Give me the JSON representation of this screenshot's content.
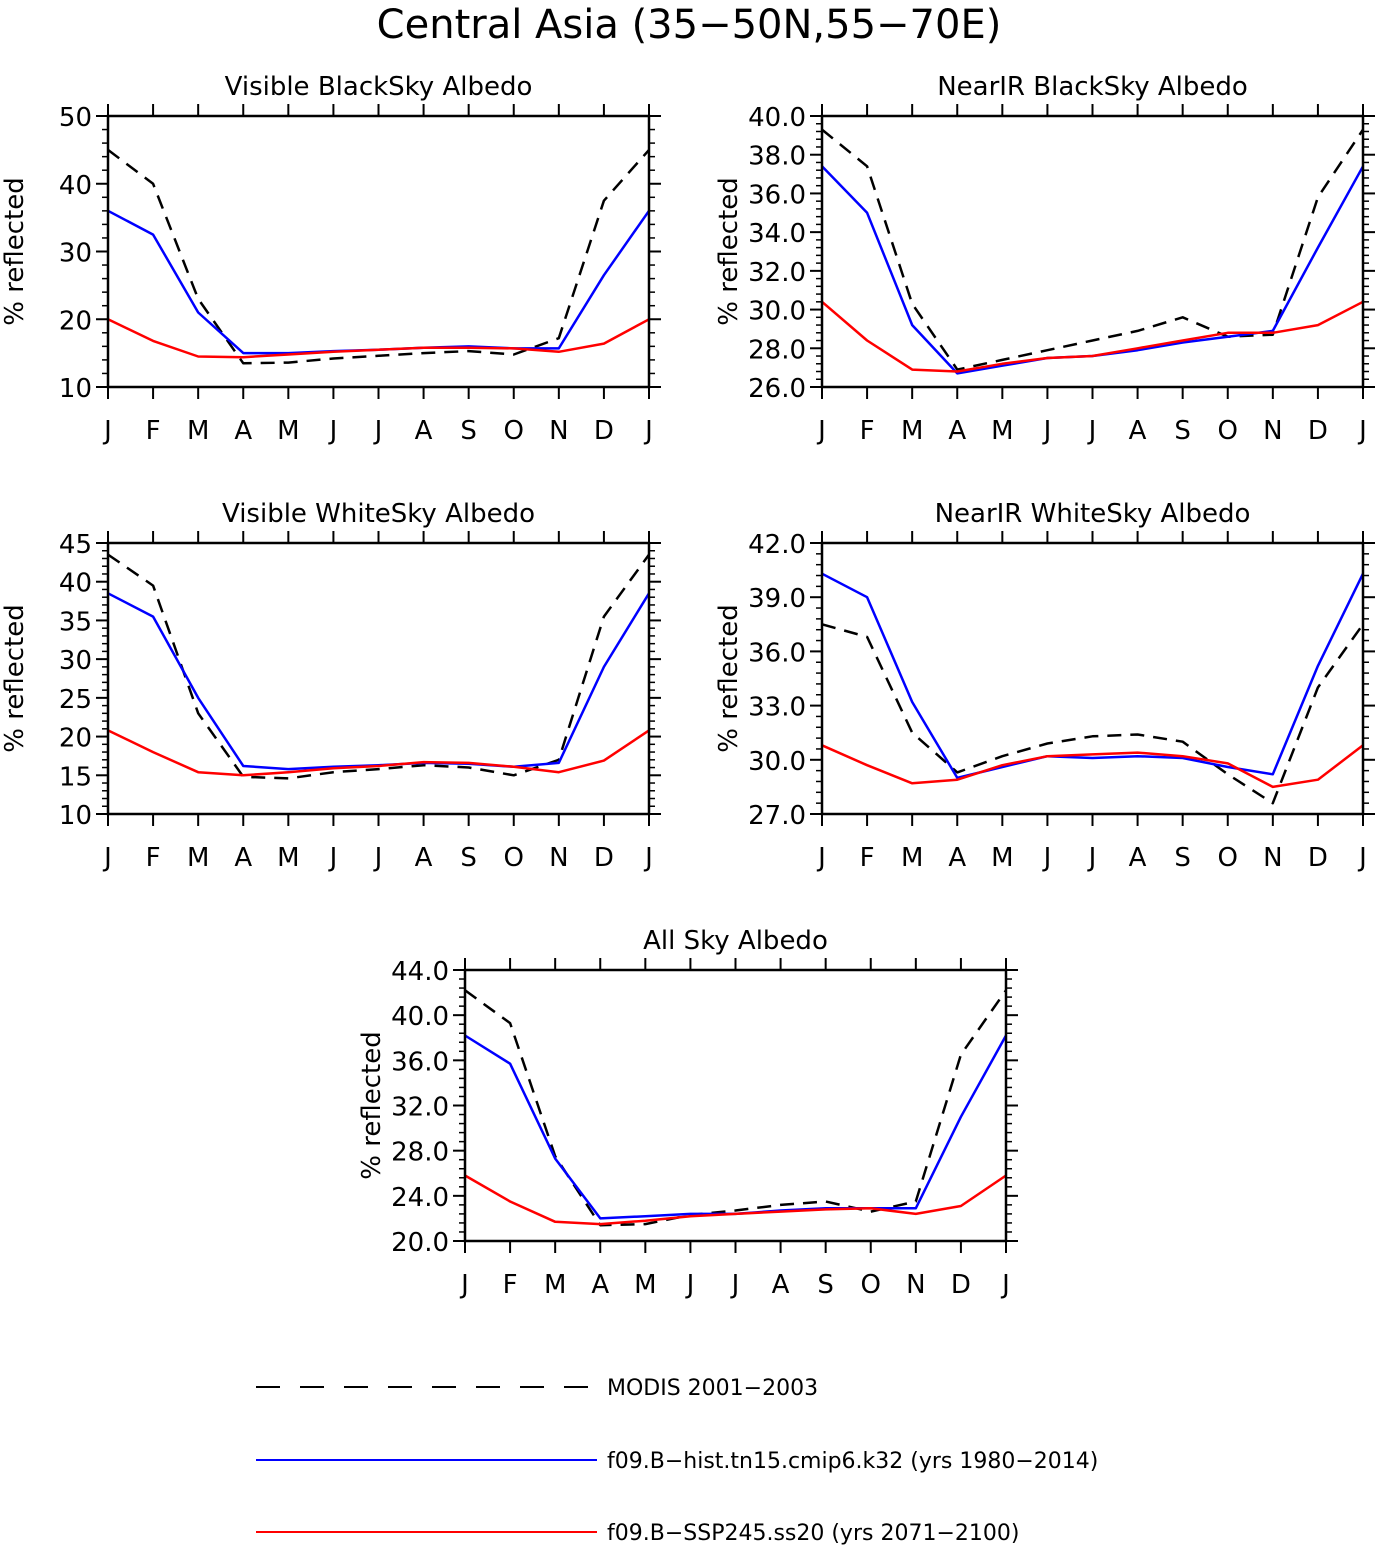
{
  "title": "Central Asia (35−50N,55−70E)",
  "colors": {
    "modis": "#000000",
    "hist": "#0000ff",
    "ssp": "#ff0000"
  },
  "legend": [
    {
      "key": "modis",
      "label": "MODIS 2001−2003",
      "style": "dashed"
    },
    {
      "key": "hist",
      "label": "f09.B−hist.tn15.cmip6.k32 (yrs 1980−2014)",
      "style": "solid"
    },
    {
      "key": "ssp",
      "label": "f09.B−SSP245.ss20 (yrs 2071−2100)",
      "style": "solid"
    }
  ],
  "chart_data": [
    {
      "type": "line",
      "title": "Visible BlackSky Albedo",
      "ylabel": "% reflected",
      "categories": [
        "J",
        "F",
        "M",
        "A",
        "M",
        "J",
        "J",
        "A",
        "S",
        "O",
        "N",
        "D",
        "J"
      ],
      "ylim": [
        10,
        50
      ],
      "yticks": [
        10,
        20,
        30,
        40,
        50
      ],
      "ytick_labels": [
        "10",
        "20",
        "30",
        "40",
        "50"
      ],
      "series": [
        {
          "key": "modis",
          "values": [
            45.0,
            40.0,
            23.0,
            13.5,
            13.6,
            14.2,
            14.6,
            15.0,
            15.3,
            14.8,
            17.2,
            37.5,
            45.0
          ]
        },
        {
          "key": "hist",
          "values": [
            36.0,
            32.5,
            21.0,
            15.0,
            15.0,
            15.3,
            15.5,
            15.8,
            16.0,
            15.7,
            15.7,
            26.5,
            36.0
          ]
        },
        {
          "key": "ssp",
          "values": [
            20.0,
            16.8,
            14.5,
            14.4,
            14.8,
            15.2,
            15.5,
            15.8,
            15.8,
            15.7,
            15.2,
            16.4,
            20.0
          ]
        }
      ]
    },
    {
      "type": "line",
      "title": "NearIR BlackSky Albedo",
      "ylabel": "% reflected",
      "categories": [
        "J",
        "F",
        "M",
        "A",
        "M",
        "J",
        "J",
        "A",
        "S",
        "O",
        "N",
        "D",
        "J"
      ],
      "ylim": [
        26,
        40
      ],
      "yticks": [
        26,
        28,
        30,
        32,
        34,
        36,
        38,
        40
      ],
      "ytick_labels": [
        "26.0",
        "28.0",
        "30.0",
        "32.0",
        "34.0",
        "36.0",
        "38.0",
        "40.0"
      ],
      "series": [
        {
          "key": "modis",
          "values": [
            39.3,
            37.4,
            30.3,
            26.9,
            27.4,
            27.9,
            28.4,
            28.9,
            29.6,
            28.6,
            28.7,
            35.8,
            39.3
          ]
        },
        {
          "key": "hist",
          "values": [
            37.4,
            35.0,
            29.2,
            26.7,
            27.1,
            27.5,
            27.6,
            27.9,
            28.3,
            28.6,
            28.9,
            33.2,
            37.4
          ]
        },
        {
          "key": "ssp",
          "values": [
            30.4,
            28.4,
            26.9,
            26.8,
            27.2,
            27.5,
            27.6,
            28.0,
            28.4,
            28.8,
            28.8,
            29.2,
            30.4
          ]
        }
      ]
    },
    {
      "type": "line",
      "title": "Visible WhiteSky Albedo",
      "ylabel": "% reflected",
      "categories": [
        "J",
        "F",
        "M",
        "A",
        "M",
        "J",
        "J",
        "A",
        "S",
        "O",
        "N",
        "D",
        "J"
      ],
      "ylim": [
        10,
        45
      ],
      "yticks": [
        10,
        15,
        20,
        25,
        30,
        35,
        40,
        45
      ],
      "ytick_labels": [
        "10",
        "15",
        "20",
        "25",
        "30",
        "35",
        "40",
        "45"
      ],
      "series": [
        {
          "key": "modis",
          "values": [
            43.5,
            39.5,
            23.0,
            14.8,
            14.6,
            15.4,
            15.8,
            16.3,
            16.0,
            15.0,
            17.0,
            35.5,
            43.5
          ]
        },
        {
          "key": "hist",
          "values": [
            38.5,
            35.5,
            25.0,
            16.2,
            15.8,
            16.1,
            16.3,
            16.6,
            16.5,
            16.1,
            16.6,
            29.0,
            38.5
          ]
        },
        {
          "key": "ssp",
          "values": [
            20.8,
            18.0,
            15.4,
            15.0,
            15.4,
            15.9,
            16.2,
            16.7,
            16.6,
            16.1,
            15.4,
            16.9,
            20.8
          ]
        }
      ]
    },
    {
      "type": "line",
      "title": "NearIR WhiteSky Albedo",
      "ylabel": "% reflected",
      "categories": [
        "J",
        "F",
        "M",
        "A",
        "M",
        "J",
        "J",
        "A",
        "S",
        "O",
        "N",
        "D",
        "J"
      ],
      "ylim": [
        27,
        42
      ],
      "yticks": [
        27,
        30,
        33,
        36,
        39,
        42
      ],
      "ytick_labels": [
        "27.0",
        "30.0",
        "33.0",
        "36.0",
        "39.0",
        "42.0"
      ],
      "series": [
        {
          "key": "modis",
          "values": [
            37.5,
            36.8,
            31.5,
            29.3,
            30.2,
            30.9,
            31.3,
            31.4,
            31.0,
            29.2,
            27.6,
            34.0,
            37.5
          ]
        },
        {
          "key": "hist",
          "values": [
            40.3,
            39.0,
            33.2,
            29.0,
            29.6,
            30.2,
            30.1,
            30.2,
            30.1,
            29.6,
            29.2,
            35.2,
            40.3
          ]
        },
        {
          "key": "ssp",
          "values": [
            30.8,
            29.7,
            28.7,
            28.9,
            29.7,
            30.2,
            30.3,
            30.4,
            30.2,
            29.8,
            28.5,
            28.9,
            30.8
          ]
        }
      ]
    },
    {
      "type": "line",
      "title": "All Sky Albedo",
      "ylabel": "% reflected",
      "categories": [
        "J",
        "F",
        "M",
        "A",
        "M",
        "J",
        "J",
        "A",
        "S",
        "O",
        "N",
        "D",
        "J"
      ],
      "ylim": [
        20,
        44
      ],
      "yticks": [
        20,
        24,
        28,
        32,
        36,
        40,
        44
      ],
      "ytick_labels": [
        "20.0",
        "24.0",
        "28.0",
        "32.0",
        "36.0",
        "40.0",
        "44.0"
      ],
      "series": [
        {
          "key": "modis",
          "values": [
            42.2,
            39.3,
            27.5,
            21.4,
            21.5,
            22.3,
            22.7,
            23.2,
            23.5,
            22.6,
            23.5,
            36.5,
            42.2
          ]
        },
        {
          "key": "hist",
          "values": [
            38.2,
            35.7,
            27.3,
            22.0,
            22.2,
            22.4,
            22.4,
            22.7,
            22.9,
            22.9,
            22.9,
            31.0,
            38.2
          ]
        },
        {
          "key": "ssp",
          "values": [
            25.8,
            23.5,
            21.7,
            21.5,
            21.8,
            22.2,
            22.4,
            22.6,
            22.8,
            22.9,
            22.4,
            23.1,
            25.8
          ]
        }
      ]
    }
  ]
}
